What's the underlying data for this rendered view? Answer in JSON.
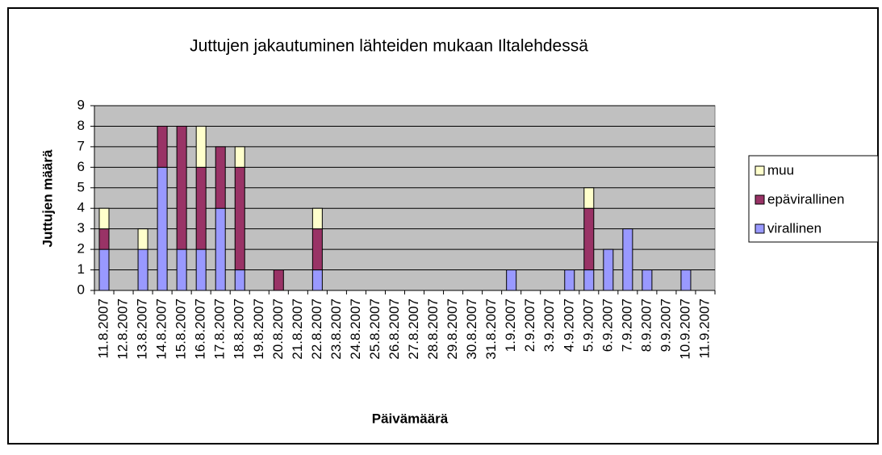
{
  "chart_data": {
    "type": "stacked_bar",
    "title": "Juttujen jakautuminen lähteiden mukaan Iltalehdessä",
    "x_label": "Päivämäärä",
    "y_label": "Juttujen määrä",
    "categories": [
      "11.8.2007",
      "12.8.2007",
      "13.8.2007",
      "14.8.2007",
      "15.8.2007",
      "16.8.2007",
      "17.8.2007",
      "18.8.2007",
      "19.8.2007",
      "20.8.2007",
      "21.8.2007",
      "22.8.2007",
      "23.8.2007",
      "24.8.2007",
      "25.8.2007",
      "26.8.2007",
      "27.8.2007",
      "28.8.2007",
      "29.8.2007",
      "30.8.2007",
      "31.8.2007",
      "1.9.2007",
      "2.9.2007",
      "3.9.2007",
      "4.9.2007",
      "5.9.2007",
      "6.9.2007",
      "7.9.2007",
      "8.9.2007",
      "9.9.2007",
      "10.9.2007",
      "11.9.2007"
    ],
    "series": [
      {
        "name": "virallinen",
        "color": "#9999ff",
        "values": [
          2,
          0,
          2,
          6,
          2,
          2,
          4,
          1,
          0,
          0,
          0,
          1,
          0,
          0,
          0,
          0,
          0,
          0,
          0,
          0,
          0,
          1,
          0,
          0,
          1,
          1,
          2,
          3,
          1,
          0,
          1,
          0
        ]
      },
      {
        "name": "epävirallinen",
        "color": "#993366",
        "values": [
          1,
          0,
          0,
          2,
          6,
          4,
          3,
          5,
          0,
          1,
          0,
          2,
          0,
          0,
          0,
          0,
          0,
          0,
          0,
          0,
          0,
          0,
          0,
          0,
          0,
          3,
          0,
          0,
          0,
          0,
          0,
          0
        ]
      },
      {
        "name": "muu",
        "color": "#ffffcc",
        "values": [
          1,
          0,
          1,
          0,
          0,
          2,
          0,
          1,
          0,
          0,
          0,
          1,
          0,
          0,
          0,
          0,
          0,
          0,
          0,
          0,
          0,
          0,
          0,
          0,
          0,
          1,
          0,
          0,
          0,
          0,
          0,
          0
        ]
      }
    ],
    "ylim": [
      0,
      9
    ],
    "yticks": [
      0,
      1,
      2,
      3,
      4,
      5,
      6,
      7,
      8,
      9
    ],
    "grid": true,
    "plot_background": "#c0c0c0",
    "legend": "right"
  }
}
